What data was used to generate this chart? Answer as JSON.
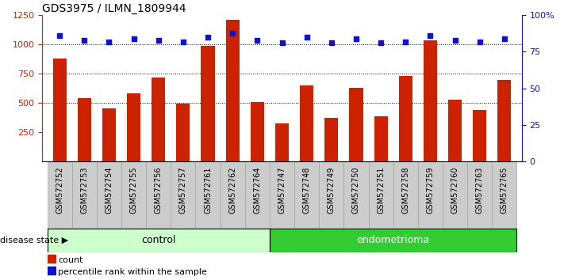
{
  "title": "GDS3975 / ILMN_1809944",
  "samples": [
    "GSM572752",
    "GSM572753",
    "GSM572754",
    "GSM572755",
    "GSM572756",
    "GSM572757",
    "GSM572761",
    "GSM572762",
    "GSM572764",
    "GSM572747",
    "GSM572748",
    "GSM572749",
    "GSM572750",
    "GSM572751",
    "GSM572758",
    "GSM572759",
    "GSM572760",
    "GSM572763",
    "GSM572765"
  ],
  "counts": [
    880,
    540,
    455,
    580,
    715,
    490,
    990,
    1215,
    505,
    325,
    650,
    370,
    630,
    385,
    730,
    1035,
    530,
    440,
    695
  ],
  "percentiles": [
    86,
    83,
    82,
    84,
    83,
    82,
    85,
    88,
    83,
    81,
    85,
    81,
    84,
    81,
    82,
    86,
    83,
    82,
    84
  ],
  "group_labels": [
    "control",
    "endometrioma"
  ],
  "group_sizes": [
    9,
    10
  ],
  "ylim_left": [
    0,
    1250
  ],
  "ylim_right": [
    0,
    100
  ],
  "yticks_left": [
    250,
    500,
    750,
    1000,
    1250
  ],
  "yticks_right": [
    0,
    25,
    50,
    75,
    100
  ],
  "bar_color": "#cc2200",
  "dot_color": "#1111cc",
  "control_bg_light": "#ccffcc",
  "endometrioma_bg": "#33cc33",
  "label_bg": "#cccccc",
  "label_bg_border": "#999999",
  "bg_white": "#ffffff",
  "title_fontsize": 10,
  "bar_width": 0.55
}
